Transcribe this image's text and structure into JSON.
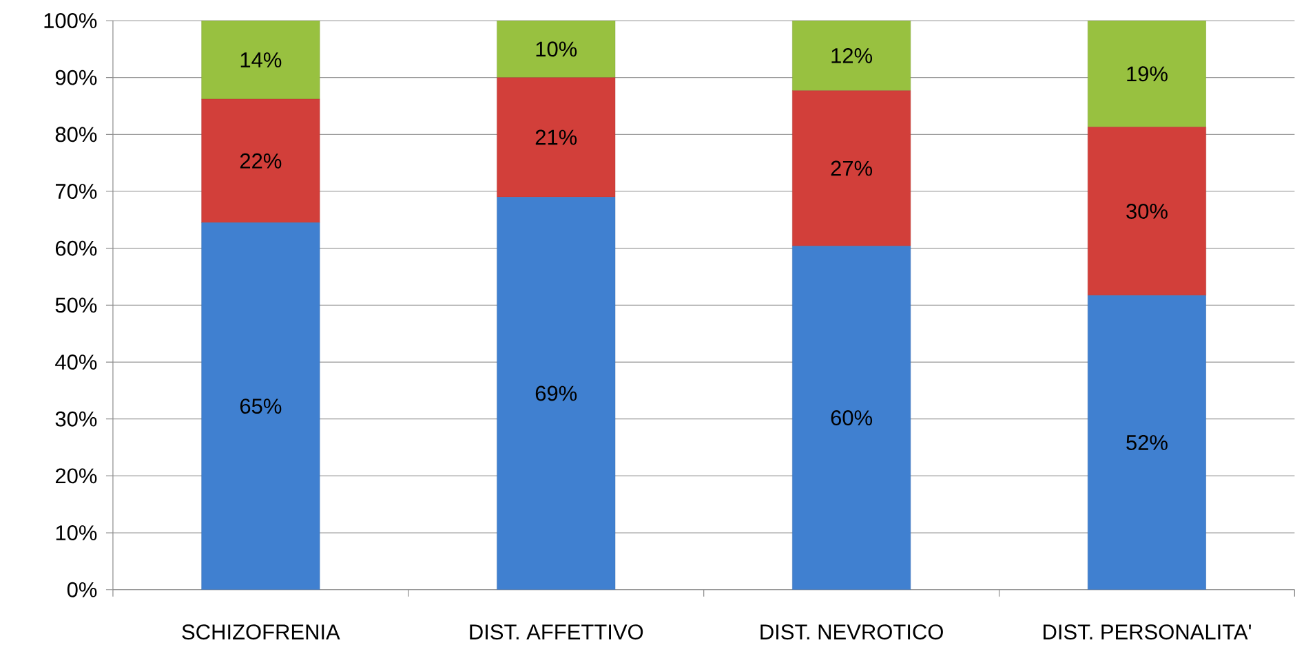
{
  "chart_data": {
    "type": "bar",
    "stacked": true,
    "grid": "y",
    "categories": [
      "SCHIZOFRENIA",
      "DIST. AFFETTIVO",
      "DIST. NEVROTICO",
      "DIST. PERSONALITA'"
    ],
    "series": [
      {
        "color": "#4080d0",
        "values": [
          64.5,
          69,
          60.4,
          51.7
        ],
        "value_labels": [
          "65%",
          "69%",
          "60%",
          "52%"
        ]
      },
      {
        "color": "#d23f3a",
        "values": [
          21.7,
          21,
          27.3,
          29.6
        ],
        "value_labels": [
          "22%",
          "21%",
          "27%",
          "30%"
        ]
      },
      {
        "color": "#98c140",
        "values": [
          13.8,
          10,
          12.3,
          18.7
        ],
        "value_labels": [
          "14%",
          "10%",
          "12%",
          "19%"
        ]
      }
    ],
    "ylim": [
      0,
      100
    ],
    "yticks": [
      {
        "value": 0,
        "label": "0%"
      },
      {
        "value": 10,
        "label": "10%"
      },
      {
        "value": 20,
        "label": "20%"
      },
      {
        "value": 30,
        "label": "30%"
      },
      {
        "value": 40,
        "label": "40%"
      },
      {
        "value": 50,
        "label": "50%"
      },
      {
        "value": 60,
        "label": "60%"
      },
      {
        "value": 70,
        "label": "70%"
      },
      {
        "value": 80,
        "label": "80%"
      },
      {
        "value": 90,
        "label": "90%"
      },
      {
        "value": 100,
        "label": "100%"
      }
    ]
  }
}
